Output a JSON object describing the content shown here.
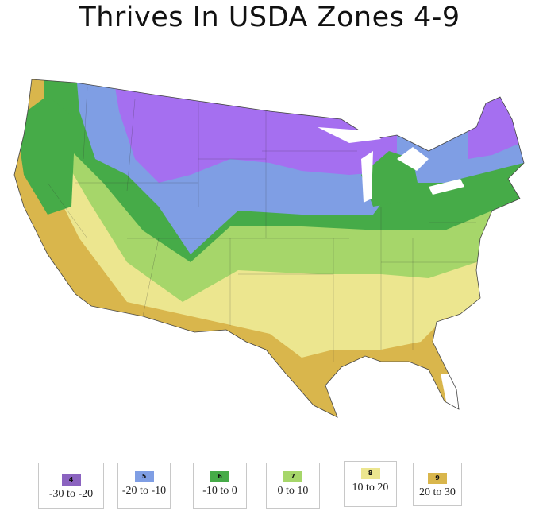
{
  "title": "Thrives In USDA Zones 4-9",
  "legend": [
    {
      "zone": "4",
      "range": "-30 to -20",
      "color": "#8b63c0"
    },
    {
      "zone": "5",
      "range": "-20 to -10",
      "color": "#7f9ee4"
    },
    {
      "zone": "6",
      "range": "-10 to 0",
      "color": "#46ab48"
    },
    {
      "zone": "7",
      "range": "0 to 10",
      "color": "#a6d66a"
    },
    {
      "zone": "8",
      "range": "10 to 20",
      "color": "#ece68f"
    },
    {
      "zone": "9",
      "range": "20 to 30",
      "color": "#d9b64c"
    }
  ]
}
